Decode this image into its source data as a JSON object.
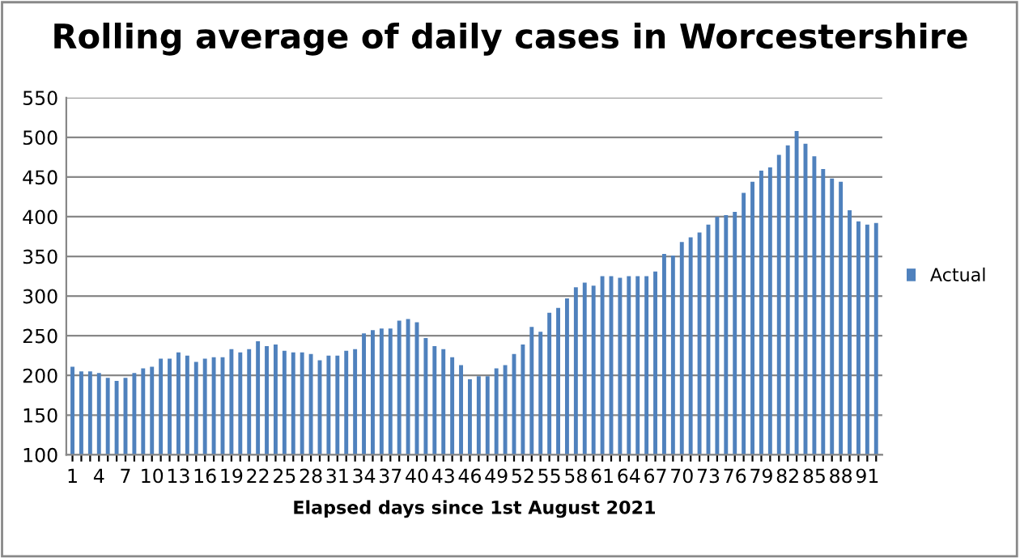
{
  "chart_data": {
    "type": "bar",
    "title": "Rolling average of daily cases in Worcestershire",
    "xlabel": "Elapsed days since 1st August 2021",
    "categories": [
      "1",
      null,
      null,
      "4",
      null,
      null,
      "7",
      null,
      null,
      "10",
      null,
      null,
      "13",
      null,
      null,
      "16",
      null,
      null,
      "19",
      null,
      null,
      "22",
      null,
      null,
      "25",
      null,
      null,
      "28",
      null,
      null,
      "31",
      null,
      null,
      "34",
      null,
      null,
      "37",
      null,
      null,
      "40",
      null,
      null,
      "43",
      null,
      null,
      "46",
      null,
      null,
      "49",
      null,
      null,
      "52",
      null,
      null,
      "55",
      null,
      null,
      "58",
      null,
      null,
      "61",
      null,
      null,
      "64",
      null,
      null,
      "67",
      null,
      null,
      "70",
      null,
      null,
      "73",
      null,
      null,
      "76",
      null,
      null,
      "79",
      null,
      null,
      "82",
      null,
      null,
      "85",
      null,
      null,
      "88",
      null,
      null,
      "91",
      null
    ],
    "series": [
      {
        "name": "Actual",
        "color": "#4f81bd",
        "values": [
          211,
          205,
          205,
          203,
          197,
          193,
          197,
          203,
          209,
          211,
          221,
          221,
          229,
          225,
          217,
          221,
          223,
          223,
          233,
          229,
          233,
          243,
          237,
          239,
          231,
          229,
          229,
          227,
          219,
          225,
          225,
          231,
          233,
          253,
          257,
          259,
          259,
          269,
          271,
          267,
          247,
          237,
          233,
          223,
          213,
          195,
          199,
          199,
          209,
          213,
          227,
          239,
          261,
          255,
          279,
          285,
          297,
          311,
          317,
          313,
          325,
          325,
          323,
          325,
          325,
          325,
          331,
          353,
          351,
          368,
          374,
          380,
          390,
          400,
          402,
          406,
          430,
          444,
          458,
          462,
          478,
          490,
          508,
          492,
          476,
          460,
          448,
          444,
          408,
          394,
          390,
          392
        ]
      }
    ],
    "ylim": [
      100,
      550
    ],
    "yticks": [
      100,
      150,
      200,
      250,
      300,
      350,
      400,
      450,
      500,
      550
    ],
    "grid": "y",
    "legend": "right"
  }
}
